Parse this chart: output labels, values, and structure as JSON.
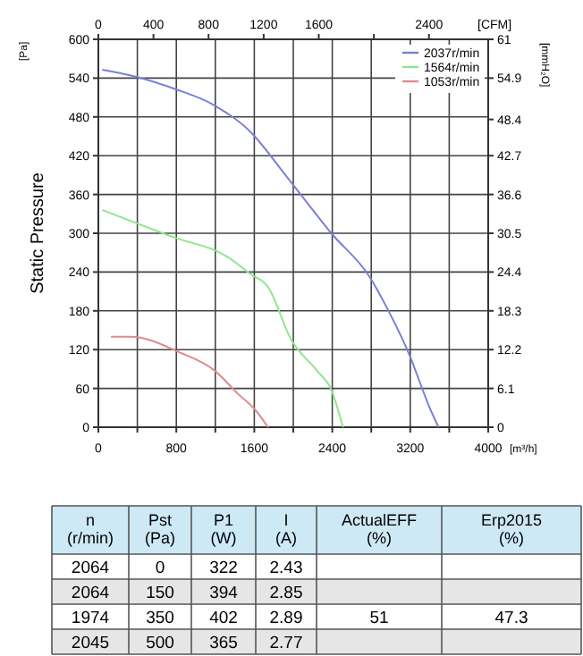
{
  "chart_data": [
    {
      "type": "line",
      "xlabel": "[m³/h]",
      "ylabel": "Static Pressure",
      "x2label": "[CFM]",
      "y2label": "[mmH₂O]",
      "annotations": [
        "[Pa]"
      ],
      "xlim": [
        0,
        4000
      ],
      "xticks": [
        0,
        {
          "value": 400,
          "label": null
        },
        800,
        {
          "value": 1200,
          "label": null
        },
        1600,
        {
          "value": 2000,
          "label": null
        },
        2400,
        {
          "value": 2800,
          "label": null
        },
        3200,
        {
          "value": 3600,
          "label": null
        },
        4000
      ],
      "ylim": [
        0,
        600
      ],
      "yticks": [
        0,
        60,
        120,
        180,
        240,
        300,
        360,
        420,
        480,
        540,
        600
      ],
      "x2lim": [
        0,
        2830
      ],
      "x2ticks": [
        0,
        400,
        800,
        1200,
        1600,
        {
          "value": 2000,
          "label": null
        },
        2400
      ],
      "y2lim": [
        0,
        61
      ],
      "y2ticks": [
        0,
        6.1,
        12.2,
        18.3,
        24.4,
        30.5,
        36.6,
        42.7,
        48.4,
        54.9,
        61
      ],
      "grid": true,
      "legend": "top right",
      "marker": "none",
      "line_style": "solid",
      "series": [
        {
          "name": "2037r/min",
          "color": "#7b7fd6",
          "x": [
            40,
            390,
            790,
            1190,
            1560,
            1930,
            2390,
            2790,
            2970,
            3180,
            3400,
            3490
          ],
          "values": [
            553,
            542,
            523,
            498,
            457,
            388,
            300,
            231,
            182,
            116,
            30,
            0
          ]
        },
        {
          "name": "1564r/min",
          "color": "#8ee68a",
          "x": [
            40,
            770,
            1320,
            1560,
            1740,
            1980,
            2240,
            2390,
            2510
          ],
          "values": [
            336,
            294,
            264,
            237,
            217,
            135,
            88,
            58,
            0
          ]
        },
        {
          "name": "1053r/min",
          "color": "#e08a8a",
          "x": [
            130,
            330,
            830,
            1190,
            1430,
            1620,
            1740
          ],
          "values": [
            140,
            140,
            116,
            88,
            52,
            25,
            0
          ]
        }
      ]
    },
    {
      "type": "other",
      "categories": [
        "n (r/min)",
        "Pst (Pa)",
        "P1 (W)",
        "I (A)",
        "ActualEFF (%)",
        "Erp2015 (%)"
      ],
      "cell_labels": [
        [
          "2064",
          "0",
          "322",
          "2.43",
          null,
          null
        ],
        [
          "2064",
          "150",
          "394",
          "2.85",
          null,
          null
        ],
        [
          "1974",
          "350",
          "402",
          "2.89",
          "51",
          "47.3"
        ],
        [
          "2045",
          "500",
          "365",
          "2.77",
          null,
          null
        ]
      ]
    }
  ]
}
